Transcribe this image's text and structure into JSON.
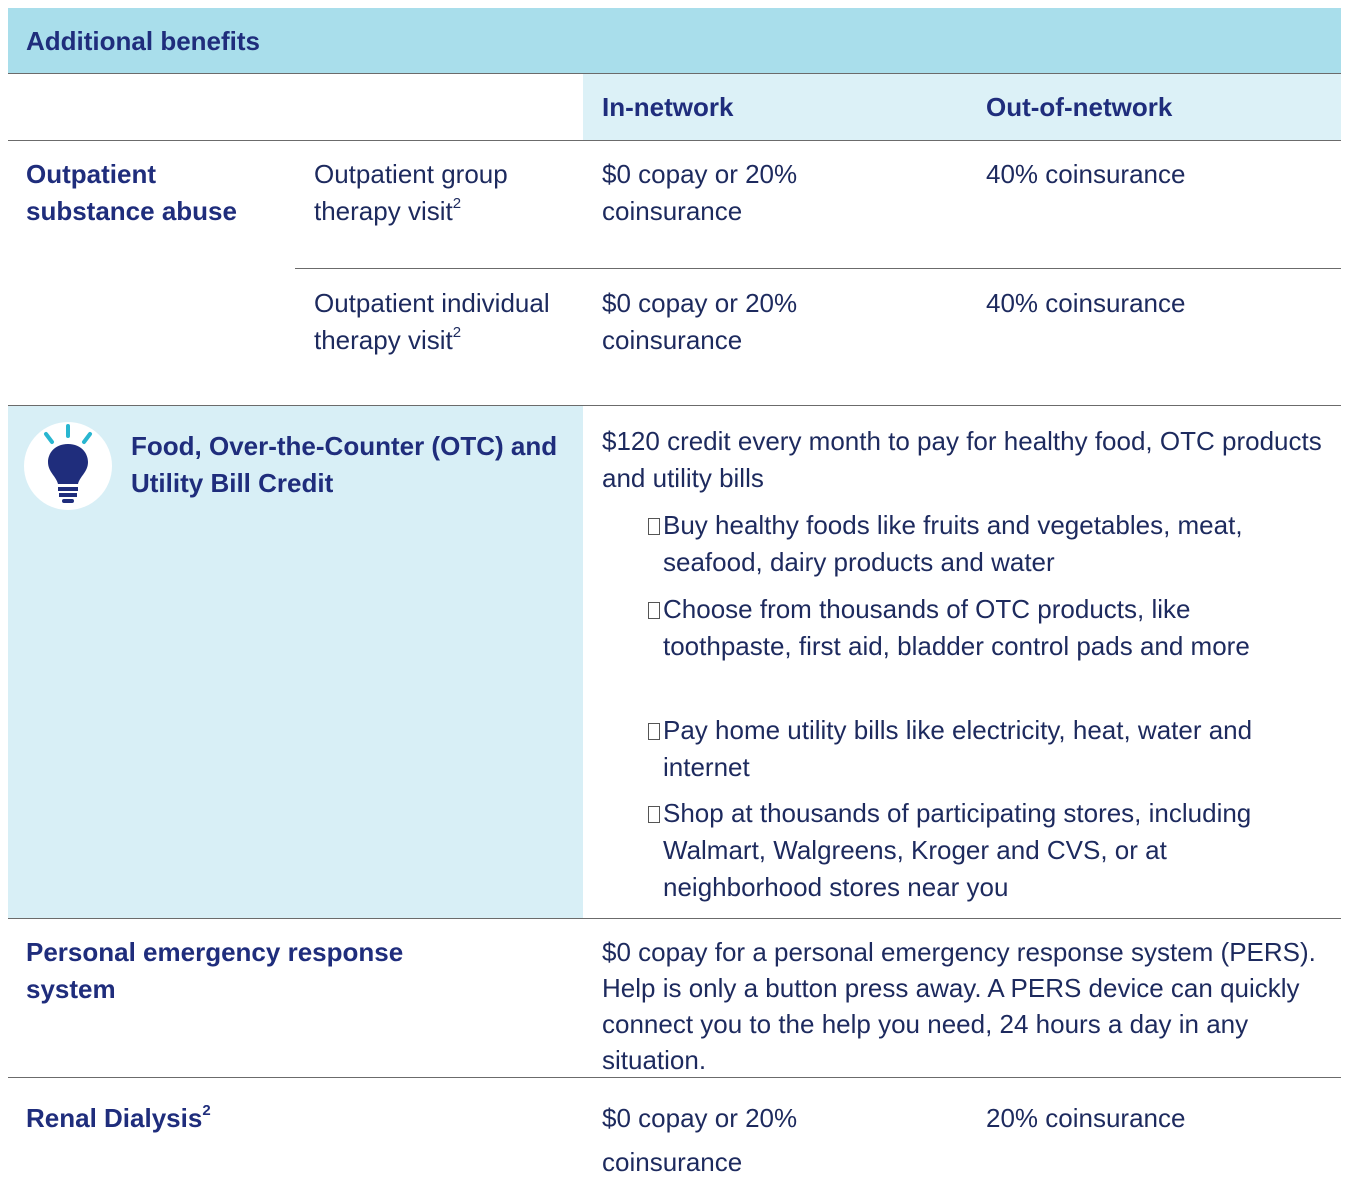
{
  "header": {
    "title": "Additional benefits"
  },
  "columns": [
    "In-network",
    "Out-of-network"
  ],
  "rows": [
    {
      "label": "Outpatient substance abuse",
      "items": [
        {
          "label": "Outpatient group therapy visit",
          "note": "2",
          "in_network": "$0 copay or 20% coinsurance",
          "out_of_network": "40% coinsurance"
        },
        {
          "label": "Outpatient individual therapy visit",
          "note": "2",
          "in_network": "$0 copay or 20% coinsurance",
          "out_of_network": "40% coinsurance"
        }
      ]
    },
    {
      "label": "Food, Over-the-Counter (OTC) and Utility Bill Credit",
      "description": "$120 credit every month to pay for healthy food, OTC products and utility bills",
      "bullets": [
        "Buy healthy foods like fruits and vegetables, meat, seafood, dairy products and water",
        "Choose from thousands of OTC products, like toothpaste, first aid, bladder control pads and more",
        "Pay home utility bills like electricity, heat, water and internet",
        "Shop at thousands of participating stores, including Walmart, Walgreens, Kroger and CVS, or at neighborhood stores near you"
      ]
    },
    {
      "label": "Personal emergency response system",
      "description": "$0 copay for a personal emergency response system (PERS). Help is only a button press away. A PERS device can quickly connect you to the help you need, 24 hours a day in any situation."
    },
    {
      "label": "Renal Dialysis",
      "note": "2",
      "in_network": "$0 copay or 20% coinsurance",
      "out_of_network": "20% coinsurance"
    }
  ]
}
